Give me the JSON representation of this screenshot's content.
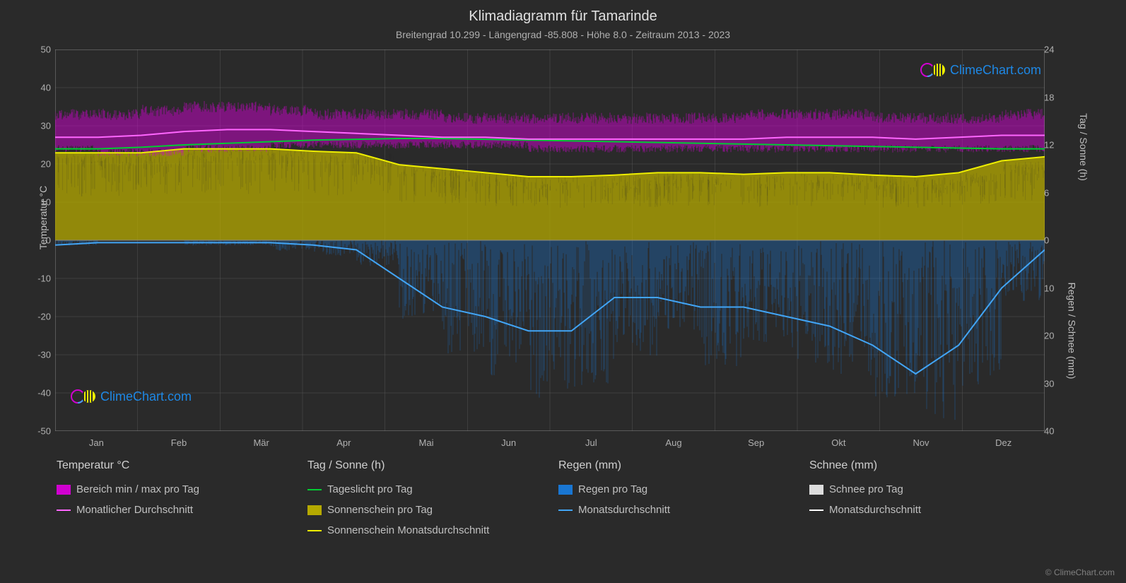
{
  "title": "Klimadiagramm für Tamarinde",
  "subtitle": "Breitengrad 10.299 - Längengrad -85.808 - Höhe 8.0 - Zeitraum 2013 - 2023",
  "y_axis_left": {
    "label": "Temperatur °C",
    "min": -50,
    "max": 50,
    "ticks": [
      -50,
      -40,
      -30,
      -20,
      -10,
      0,
      10,
      20,
      30,
      40,
      50
    ]
  },
  "y_axis_right_top": {
    "label": "Tag / Sonne (h)",
    "min": 0,
    "max": 24,
    "ticks": [
      0,
      6,
      12,
      18,
      24
    ]
  },
  "y_axis_right_bottom": {
    "label": "Regen / Schnee (mm)",
    "min": 0,
    "max": 40,
    "ticks": [
      0,
      10,
      20,
      30,
      40
    ]
  },
  "x_axis": {
    "months": [
      "Jan",
      "Feb",
      "Mär",
      "Apr",
      "Mai",
      "Jun",
      "Jul",
      "Aug",
      "Sep",
      "Okt",
      "Nov",
      "Dez"
    ]
  },
  "colors": {
    "background": "#2a2a2a",
    "grid": "#555555",
    "temp_range_fill": "#d000d0",
    "temp_avg_line": "#ff66ff",
    "daylight_line": "#00cc33",
    "sunshine_fill": "#b5a900",
    "sunshine_line": "#eeee00",
    "rain_fill": "#1976d2",
    "rain_line": "#42a5f5",
    "snow_fill": "#dddddd",
    "snow_line": "#ffffff",
    "text": "#d0d0d0"
  },
  "series": {
    "temp_max_daily": [
      33,
      33,
      34,
      35,
      35,
      34,
      33,
      33,
      33,
      32,
      32,
      32,
      32,
      32,
      32,
      32,
      33,
      33,
      33,
      32,
      32,
      32,
      33,
      33
    ],
    "temp_min_daily": [
      24,
      23,
      23,
      24,
      24,
      25,
      25,
      25,
      25,
      25,
      25,
      24,
      24,
      24,
      24,
      24,
      24,
      24,
      24,
      24,
      24,
      24,
      24,
      24
    ],
    "temp_avg_monthly": [
      27,
      27,
      27.5,
      28.5,
      29,
      29,
      28.5,
      28,
      27.5,
      27,
      27,
      26.5,
      26.5,
      26.5,
      26.5,
      26.5,
      26.5,
      27,
      27,
      27,
      26.5,
      27,
      27.5,
      27.5
    ],
    "daylight_hours": [
      11.5,
      11.5,
      11.7,
      12,
      12.2,
      12.4,
      12.6,
      12.7,
      12.8,
      12.8,
      12.7,
      12.6,
      12.5,
      12.4,
      12.3,
      12.2,
      12.1,
      12,
      11.9,
      11.8,
      11.7,
      11.6,
      11.5,
      11.5
    ],
    "sunshine_hours": [
      11,
      11,
      11,
      11.5,
      11.5,
      11.5,
      11.2,
      11,
      9.5,
      9,
      8.5,
      8,
      8,
      8.2,
      8.5,
      8.5,
      8.3,
      8.5,
      8.5,
      8.2,
      8,
      8.5,
      10,
      10.5
    ],
    "rain_daily_max": [
      1,
      0,
      0,
      1,
      1,
      2,
      3,
      5,
      15,
      22,
      26,
      30,
      28,
      22,
      18,
      24,
      20,
      24,
      26,
      30,
      35,
      28,
      12,
      3
    ],
    "rain_avg_monthly": [
      1,
      0.5,
      0.5,
      0.5,
      0.5,
      0.5,
      1,
      2,
      8,
      14,
      16,
      19,
      19,
      12,
      12,
      14,
      14,
      16,
      18,
      22,
      28,
      22,
      10,
      2
    ]
  },
  "legend": {
    "col1": {
      "header": "Temperatur °C",
      "items": [
        {
          "type": "swatch",
          "color": "#d000d0",
          "label": "Bereich min / max pro Tag"
        },
        {
          "type": "line",
          "color": "#ff66ff",
          "label": "Monatlicher Durchschnitt"
        }
      ]
    },
    "col2": {
      "header": "Tag / Sonne (h)",
      "items": [
        {
          "type": "line",
          "color": "#00cc33",
          "label": "Tageslicht pro Tag"
        },
        {
          "type": "swatch",
          "color": "#b5a900",
          "label": "Sonnenschein pro Tag"
        },
        {
          "type": "line",
          "color": "#eeee00",
          "label": "Sonnenschein Monatsdurchschnitt"
        }
      ]
    },
    "col3": {
      "header": "Regen (mm)",
      "items": [
        {
          "type": "swatch",
          "color": "#1976d2",
          "label": "Regen pro Tag"
        },
        {
          "type": "line",
          "color": "#42a5f5",
          "label": "Monatsdurchschnitt"
        }
      ]
    },
    "col4": {
      "header": "Schnee (mm)",
      "items": [
        {
          "type": "swatch",
          "color": "#dddddd",
          "label": "Schnee pro Tag"
        },
        {
          "type": "line",
          "color": "#ffffff",
          "label": "Monatsdurchschnitt"
        }
      ]
    }
  },
  "watermark": "ClimeChart.com",
  "copyright": "© ClimeChart.com"
}
